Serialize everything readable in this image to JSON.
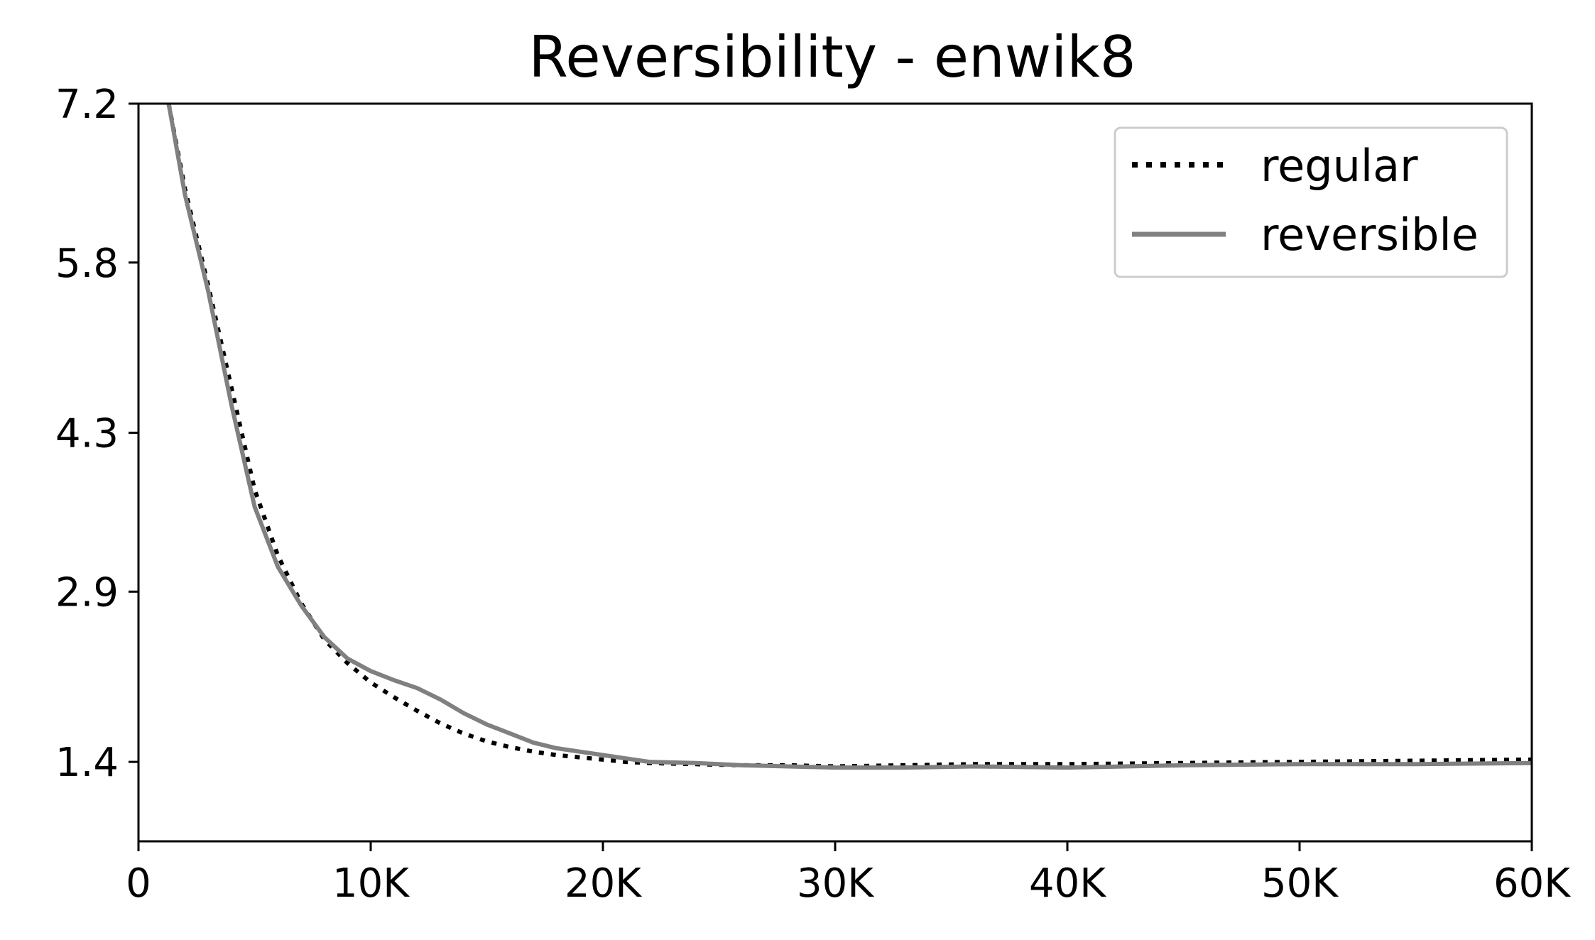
{
  "chart_data": {
    "type": "line",
    "title": "Reversibility - enwik8",
    "xlabel": "",
    "ylabel": "",
    "xlim": [
      0,
      60000
    ],
    "ylim": [
      0.7,
      7.2
    ],
    "x_ticks": [
      {
        "value": 0,
        "label": "0"
      },
      {
        "value": 10000,
        "label": "10K"
      },
      {
        "value": 20000,
        "label": "20K"
      },
      {
        "value": 30000,
        "label": "30K"
      },
      {
        "value": 40000,
        "label": "40K"
      },
      {
        "value": 50000,
        "label": "50K"
      },
      {
        "value": 60000,
        "label": "60K"
      }
    ],
    "y_ticks": [
      {
        "value": 1.4,
        "label": "1.4"
      },
      {
        "value": 2.9,
        "label": "2.9"
      },
      {
        "value": 4.3,
        "label": "4.3"
      },
      {
        "value": 5.8,
        "label": "5.8"
      },
      {
        "value": 7.2,
        "label": "7.2"
      }
    ],
    "grid": false,
    "legend_position": "top-right",
    "series": [
      {
        "name": "regular",
        "color": "#000000",
        "style": "dotted",
        "x": [
          1300,
          2000,
          3000,
          4000,
          5000,
          6000,
          7000,
          8000,
          9000,
          10000,
          11000,
          12000,
          13000,
          14000,
          15000,
          16000,
          17000,
          18000,
          19000,
          20000,
          21000,
          22000,
          24000,
          26000,
          28000,
          30000,
          33000,
          36000,
          40000,
          45000,
          50000,
          55000,
          60000
        ],
        "y": [
          7.2,
          6.45,
          5.6,
          4.7,
          3.8,
          3.22,
          2.8,
          2.48,
          2.27,
          2.1,
          1.97,
          1.85,
          1.74,
          1.65,
          1.58,
          1.53,
          1.49,
          1.46,
          1.44,
          1.42,
          1.4,
          1.39,
          1.38,
          1.37,
          1.37,
          1.36,
          1.37,
          1.38,
          1.38,
          1.39,
          1.4,
          1.41,
          1.42
        ]
      },
      {
        "name": "reversible",
        "color": "#808080",
        "style": "solid",
        "x": [
          1300,
          2000,
          3000,
          4000,
          5000,
          6000,
          7000,
          8000,
          9000,
          10000,
          11000,
          12000,
          13000,
          14000,
          15000,
          16000,
          17000,
          18000,
          19000,
          20000,
          21000,
          22000,
          24000,
          26000,
          28000,
          30000,
          33000,
          36000,
          40000,
          45000,
          50000,
          55000,
          60000
        ],
        "y": [
          7.2,
          6.4,
          5.55,
          4.55,
          3.65,
          3.12,
          2.78,
          2.5,
          2.31,
          2.2,
          2.12,
          2.05,
          1.95,
          1.83,
          1.73,
          1.65,
          1.57,
          1.52,
          1.49,
          1.46,
          1.43,
          1.4,
          1.39,
          1.37,
          1.36,
          1.35,
          1.35,
          1.36,
          1.35,
          1.37,
          1.38,
          1.38,
          1.39
        ]
      }
    ]
  }
}
